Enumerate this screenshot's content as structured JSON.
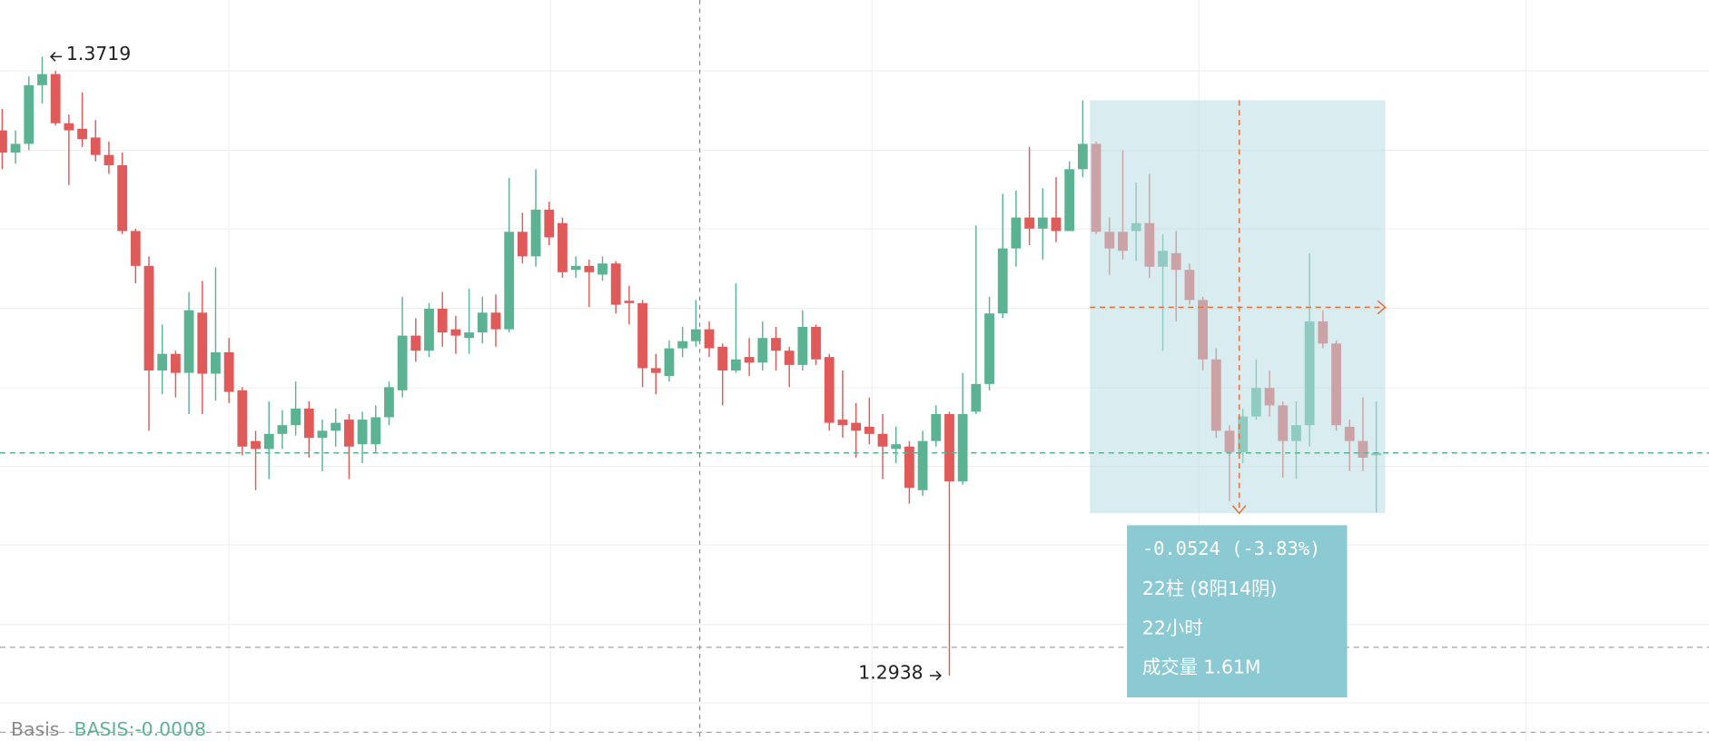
{
  "chart_data": {
    "type": "candlestick",
    "up_color": "#5cb394",
    "down_color": "#e05a5a",
    "open": [
      1.3626,
      1.3598,
      1.3609,
      1.3683,
      1.3697,
      1.3635,
      1.3628,
      1.3617,
      1.3595,
      1.3582,
      1.3499,
      1.3455,
      1.3323,
      1.3344,
      1.332,
      1.3396,
      1.3319,
      1.3346,
      1.3298,
      1.3234,
      1.3224,
      1.3243,
      1.3254,
      1.3275,
      1.3238,
      1.3247,
      1.3261,
      1.323,
      1.323,
      1.3264,
      1.3298,
      1.3367,
      1.3348,
      1.3401,
      1.3375,
      1.3364,
      1.3371,
      1.3396,
      1.3375,
      1.3498,
      1.3467,
      1.3526,
      1.3509,
      1.345,
      1.3455,
      1.3444,
      1.3458,
      1.3411,
      1.3408,
      1.3326,
      1.3316,
      1.3351,
      1.336,
      1.3375,
      1.3353,
      1.3323,
      1.334,
      1.3333,
      1.3364,
      1.3348,
      1.333,
      1.3378,
      1.334,
      1.3261,
      1.3257,
      1.3252,
      1.3243,
      1.3224,
      1.3227,
      1.3172,
      1.3234,
      1.3268,
      1.3183,
      1.3271,
      1.3306,
      1.3395,
      1.3477,
      1.3516,
      1.3502,
      1.3516,
      1.3499,
      1.3577,
      1.3609,
      1.3498,
      1.3498,
      1.3499,
      1.3509,
      1.3454,
      1.3471,
      1.345,
      1.3412,
      1.3337,
      1.3247,
      1.322,
      1.3265,
      1.3301,
      1.3279,
      1.3234,
      1.3254,
      1.3385,
      1.3357,
      1.3252,
      1.3234,
      1.3216
    ],
    "high": [
      1.3653,
      1.3626,
      1.3694,
      1.3719,
      1.3701,
      1.3646,
      1.3674,
      1.3639,
      1.3612,
      1.3598,
      1.3502,
      1.3467,
      1.3381,
      1.3348,
      1.3422,
      1.3436,
      1.3453,
      1.3364,
      1.3302,
      1.3247,
      1.3284,
      1.3273,
      1.3309,
      1.3284,
      1.3261,
      1.3275,
      1.3268,
      1.3271,
      1.3279,
      1.3309,
      1.3416,
      1.3389,
      1.3408,
      1.3422,
      1.3392,
      1.3426,
      1.3416,
      1.3419,
      1.3566,
      1.3522,
      1.3577,
      1.3536,
      1.3516,
      1.3467,
      1.3463,
      1.3467,
      1.3461,
      1.343,
      1.3412,
      1.3344,
      1.3361,
      1.3378,
      1.3412,
      1.3385,
      1.3357,
      1.3433,
      1.3364,
      1.3385,
      1.3378,
      1.3353,
      1.3399,
      1.3381,
      1.3344,
      1.3323,
      1.3282,
      1.3289,
      1.3268,
      1.3252,
      1.3234,
      1.3247,
      1.3279,
      1.3271,
      1.332,
      1.3506,
      1.3416,
      1.3546,
      1.355,
      1.3605,
      1.3553,
      1.3567,
      1.3587,
      1.3664,
      1.3612,
      1.3516,
      1.3601,
      1.356,
      1.3571,
      1.3495,
      1.3499,
      1.3458,
      1.3416,
      1.3351,
      1.3254,
      1.3275,
      1.3337,
      1.3323,
      1.3284,
      1.3284,
      1.3471,
      1.3399,
      1.3361,
      1.3261,
      1.3289,
      1.3284
    ],
    "low": [
      1.3577,
      1.3584,
      1.3601,
      1.366,
      1.3632,
      1.3557,
      1.3605,
      1.3587,
      1.3571,
      1.3495,
      1.3433,
      1.3247,
      1.3293,
      1.3289,
      1.3268,
      1.3268,
      1.3285,
      1.3282,
      1.3216,
      1.3172,
      1.3186,
      1.3224,
      1.3241,
      1.3213,
      1.3196,
      1.3227,
      1.3186,
      1.3206,
      1.322,
      1.3254,
      1.3289,
      1.3334,
      1.334,
      1.3353,
      1.3344,
      1.3344,
      1.3357,
      1.3353,
      1.3371,
      1.3458,
      1.3454,
      1.3481,
      1.344,
      1.344,
      1.3403,
      1.3436,
      1.3395,
      1.3381,
      1.3302,
      1.3293,
      1.3309,
      1.334,
      1.3353,
      1.334,
      1.3279,
      1.332,
      1.3316,
      1.3323,
      1.3323,
      1.3302,
      1.3323,
      1.333,
      1.3247,
      1.3238,
      1.3213,
      1.323,
      1.3186,
      1.3206,
      1.3155,
      1.3165,
      1.3227,
      1.2938,
      1.3179,
      1.3268,
      1.3298,
      1.3389,
      1.3454,
      1.3481,
      1.3463,
      1.3485,
      1.3499,
      1.3567,
      1.3495,
      1.3444,
      1.3463,
      1.3461,
      1.344,
      1.3348,
      1.3385,
      1.3406,
      1.3323,
      1.3238,
      1.3158,
      1.3206,
      1.3261,
      1.3265,
      1.3188,
      1.3186,
      1.3227,
      1.3351,
      1.3247,
      1.3196,
      1.3196,
      1.3144
    ],
    "close": [
      1.3598,
      1.3609,
      1.3683,
      1.3697,
      1.3635,
      1.3626,
      1.3615,
      1.3595,
      1.3582,
      1.3499,
      1.3455,
      1.3323,
      1.3344,
      1.332,
      1.3399,
      1.3319,
      1.3346,
      1.3296,
      1.3227,
      1.3224,
      1.3243,
      1.3254,
      1.3275,
      1.3238,
      1.3247,
      1.3257,
      1.3227,
      1.3261,
      1.3264,
      1.3302,
      1.3367,
      1.3348,
      1.3401,
      1.3371,
      1.3367,
      1.3371,
      1.3396,
      1.3375,
      1.3498,
      1.3467,
      1.3526,
      1.3491,
      1.3447,
      1.3455,
      1.3447,
      1.3458,
      1.3406,
      1.3408,
      1.3326,
      1.332,
      1.3351,
      1.336,
      1.3375,
      1.3351,
      1.3323,
      1.3337,
      1.3333,
      1.3364,
      1.3348,
      1.333,
      1.3378,
      1.3337,
      1.3257,
      1.3254,
      1.3247,
      1.3243,
      1.3227,
      1.323,
      1.3175,
      1.3234,
      1.3268,
      1.3183,
      1.3268,
      1.3306,
      1.3395,
      1.3477,
      1.3516,
      1.3502,
      1.3516,
      1.3499,
      1.3577,
      1.3609,
      1.3498,
      1.3477,
      1.3474,
      1.3509,
      1.3454,
      1.3474,
      1.345,
      1.3412,
      1.3337,
      1.3247,
      1.322,
      1.3265,
      1.3301,
      1.3279,
      1.3234,
      1.3254,
      1.3385,
      1.3357,
      1.3254,
      1.3234,
      1.3213,
      1.3219
    ],
    "high_label": "1.3719",
    "low_label": "1.2938",
    "measure": {
      "change": "-0.0524 (-3.83%)",
      "bars": "22柱 (8阳14阴)",
      "duration": "22小时",
      "volume": "成交量 1.61M"
    },
    "indicator": {
      "name": "Basis",
      "value": "BASIS:-0.0008"
    }
  }
}
